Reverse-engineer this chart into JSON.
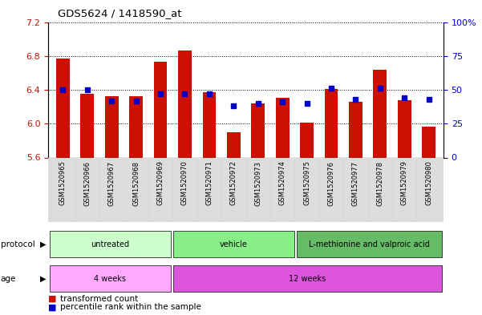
{
  "title": "GDS5624 / 1418590_at",
  "samples": [
    "GSM1520965",
    "GSM1520966",
    "GSM1520967",
    "GSM1520968",
    "GSM1520969",
    "GSM1520970",
    "GSM1520971",
    "GSM1520972",
    "GSM1520973",
    "GSM1520974",
    "GSM1520975",
    "GSM1520976",
    "GSM1520977",
    "GSM1520978",
    "GSM1520979",
    "GSM1520980"
  ],
  "bar_values": [
    6.77,
    6.35,
    6.32,
    6.32,
    6.73,
    6.86,
    6.37,
    5.9,
    6.24,
    6.31,
    6.01,
    6.41,
    6.26,
    6.64,
    6.28,
    5.96
  ],
  "blue_pct": [
    50,
    50,
    42,
    42,
    47,
    47,
    47,
    38,
    40,
    41,
    40,
    51,
    43,
    51,
    44,
    43
  ],
  "y_min": 5.6,
  "y_max": 7.2,
  "y_ticks": [
    5.6,
    6.0,
    6.4,
    6.8,
    7.2
  ],
  "right_y_ticks": [
    0,
    25,
    50,
    75,
    100
  ],
  "bar_color": "#cc1100",
  "blue_color": "#0000cc",
  "protocol_labels": [
    "untreated",
    "vehicle",
    "L-methionine and valproic acid"
  ],
  "protocol_starts": [
    0,
    5,
    10
  ],
  "protocol_ends": [
    5,
    10,
    16
  ],
  "protocol_colors": [
    "#ccffcc",
    "#88ee88",
    "#66bb66"
  ],
  "age_labels": [
    "4 weeks",
    "12 weeks"
  ],
  "age_starts": [
    0,
    5
  ],
  "age_ends": [
    5,
    16
  ],
  "age_colors": [
    "#ffaaff",
    "#dd55dd"
  ],
  "legend_labels": [
    "transformed count",
    "percentile rank within the sample"
  ]
}
